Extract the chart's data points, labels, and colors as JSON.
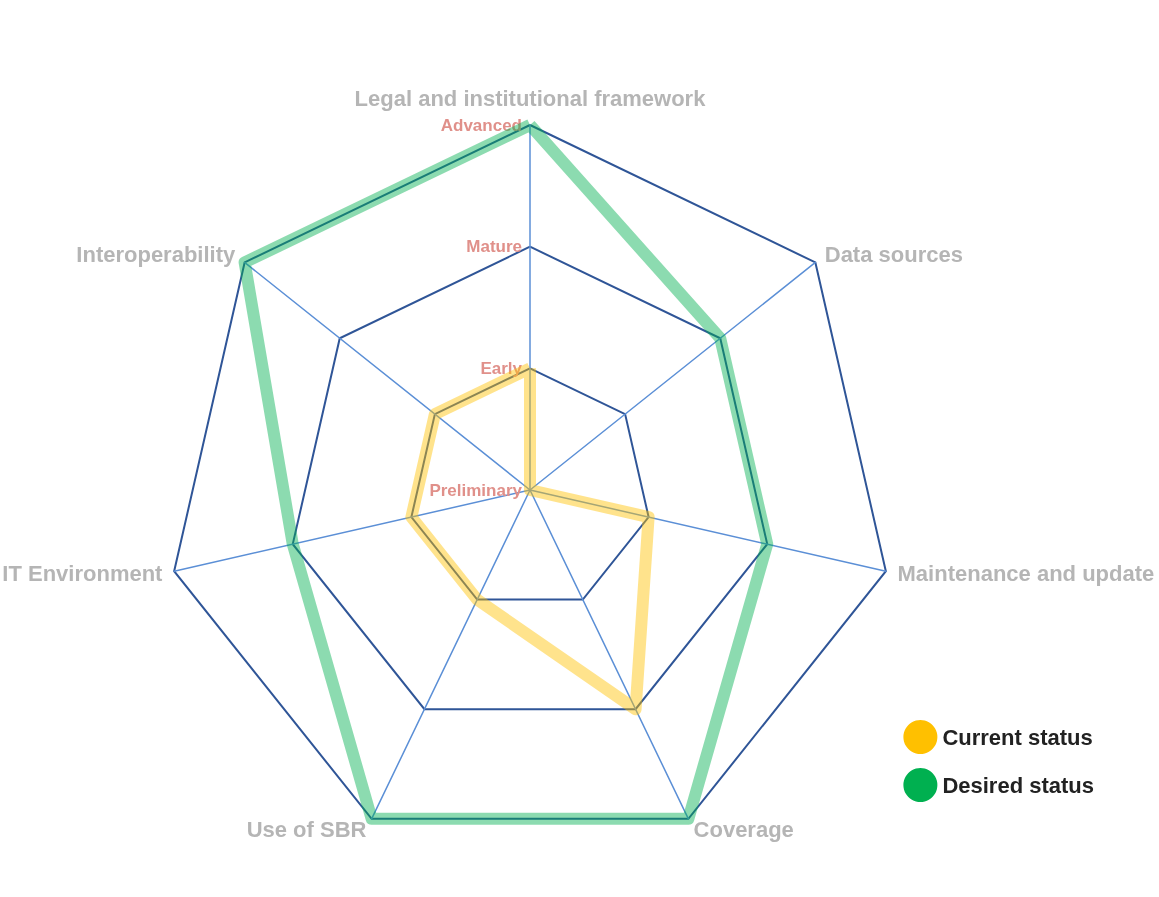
{
  "chart_data": {
    "type": "radar",
    "categories": [
      "Legal and institutional framework",
      "Data sources",
      "Maintenance and update",
      "Coverage",
      "Use of SBR",
      "IT Environment",
      "Interoperability"
    ],
    "ylim": [
      0,
      3
    ],
    "yticks": [
      {
        "value": 0,
        "label": "Preliminary"
      },
      {
        "value": 1,
        "label": "Early"
      },
      {
        "value": 2,
        "label": "Mature"
      },
      {
        "value": 3,
        "label": "Advanced"
      }
    ],
    "series": [
      {
        "name": "Current status",
        "color": "#ffc000",
        "values": [
          1,
          0,
          1,
          2,
          1,
          1,
          1
        ]
      },
      {
        "name": "Desired status",
        "color": "#00b050",
        "values": [
          3,
          2,
          2,
          3,
          3,
          2,
          3
        ]
      }
    ],
    "legend": "bottom right",
    "marker": "none",
    "line_style": "solid"
  }
}
